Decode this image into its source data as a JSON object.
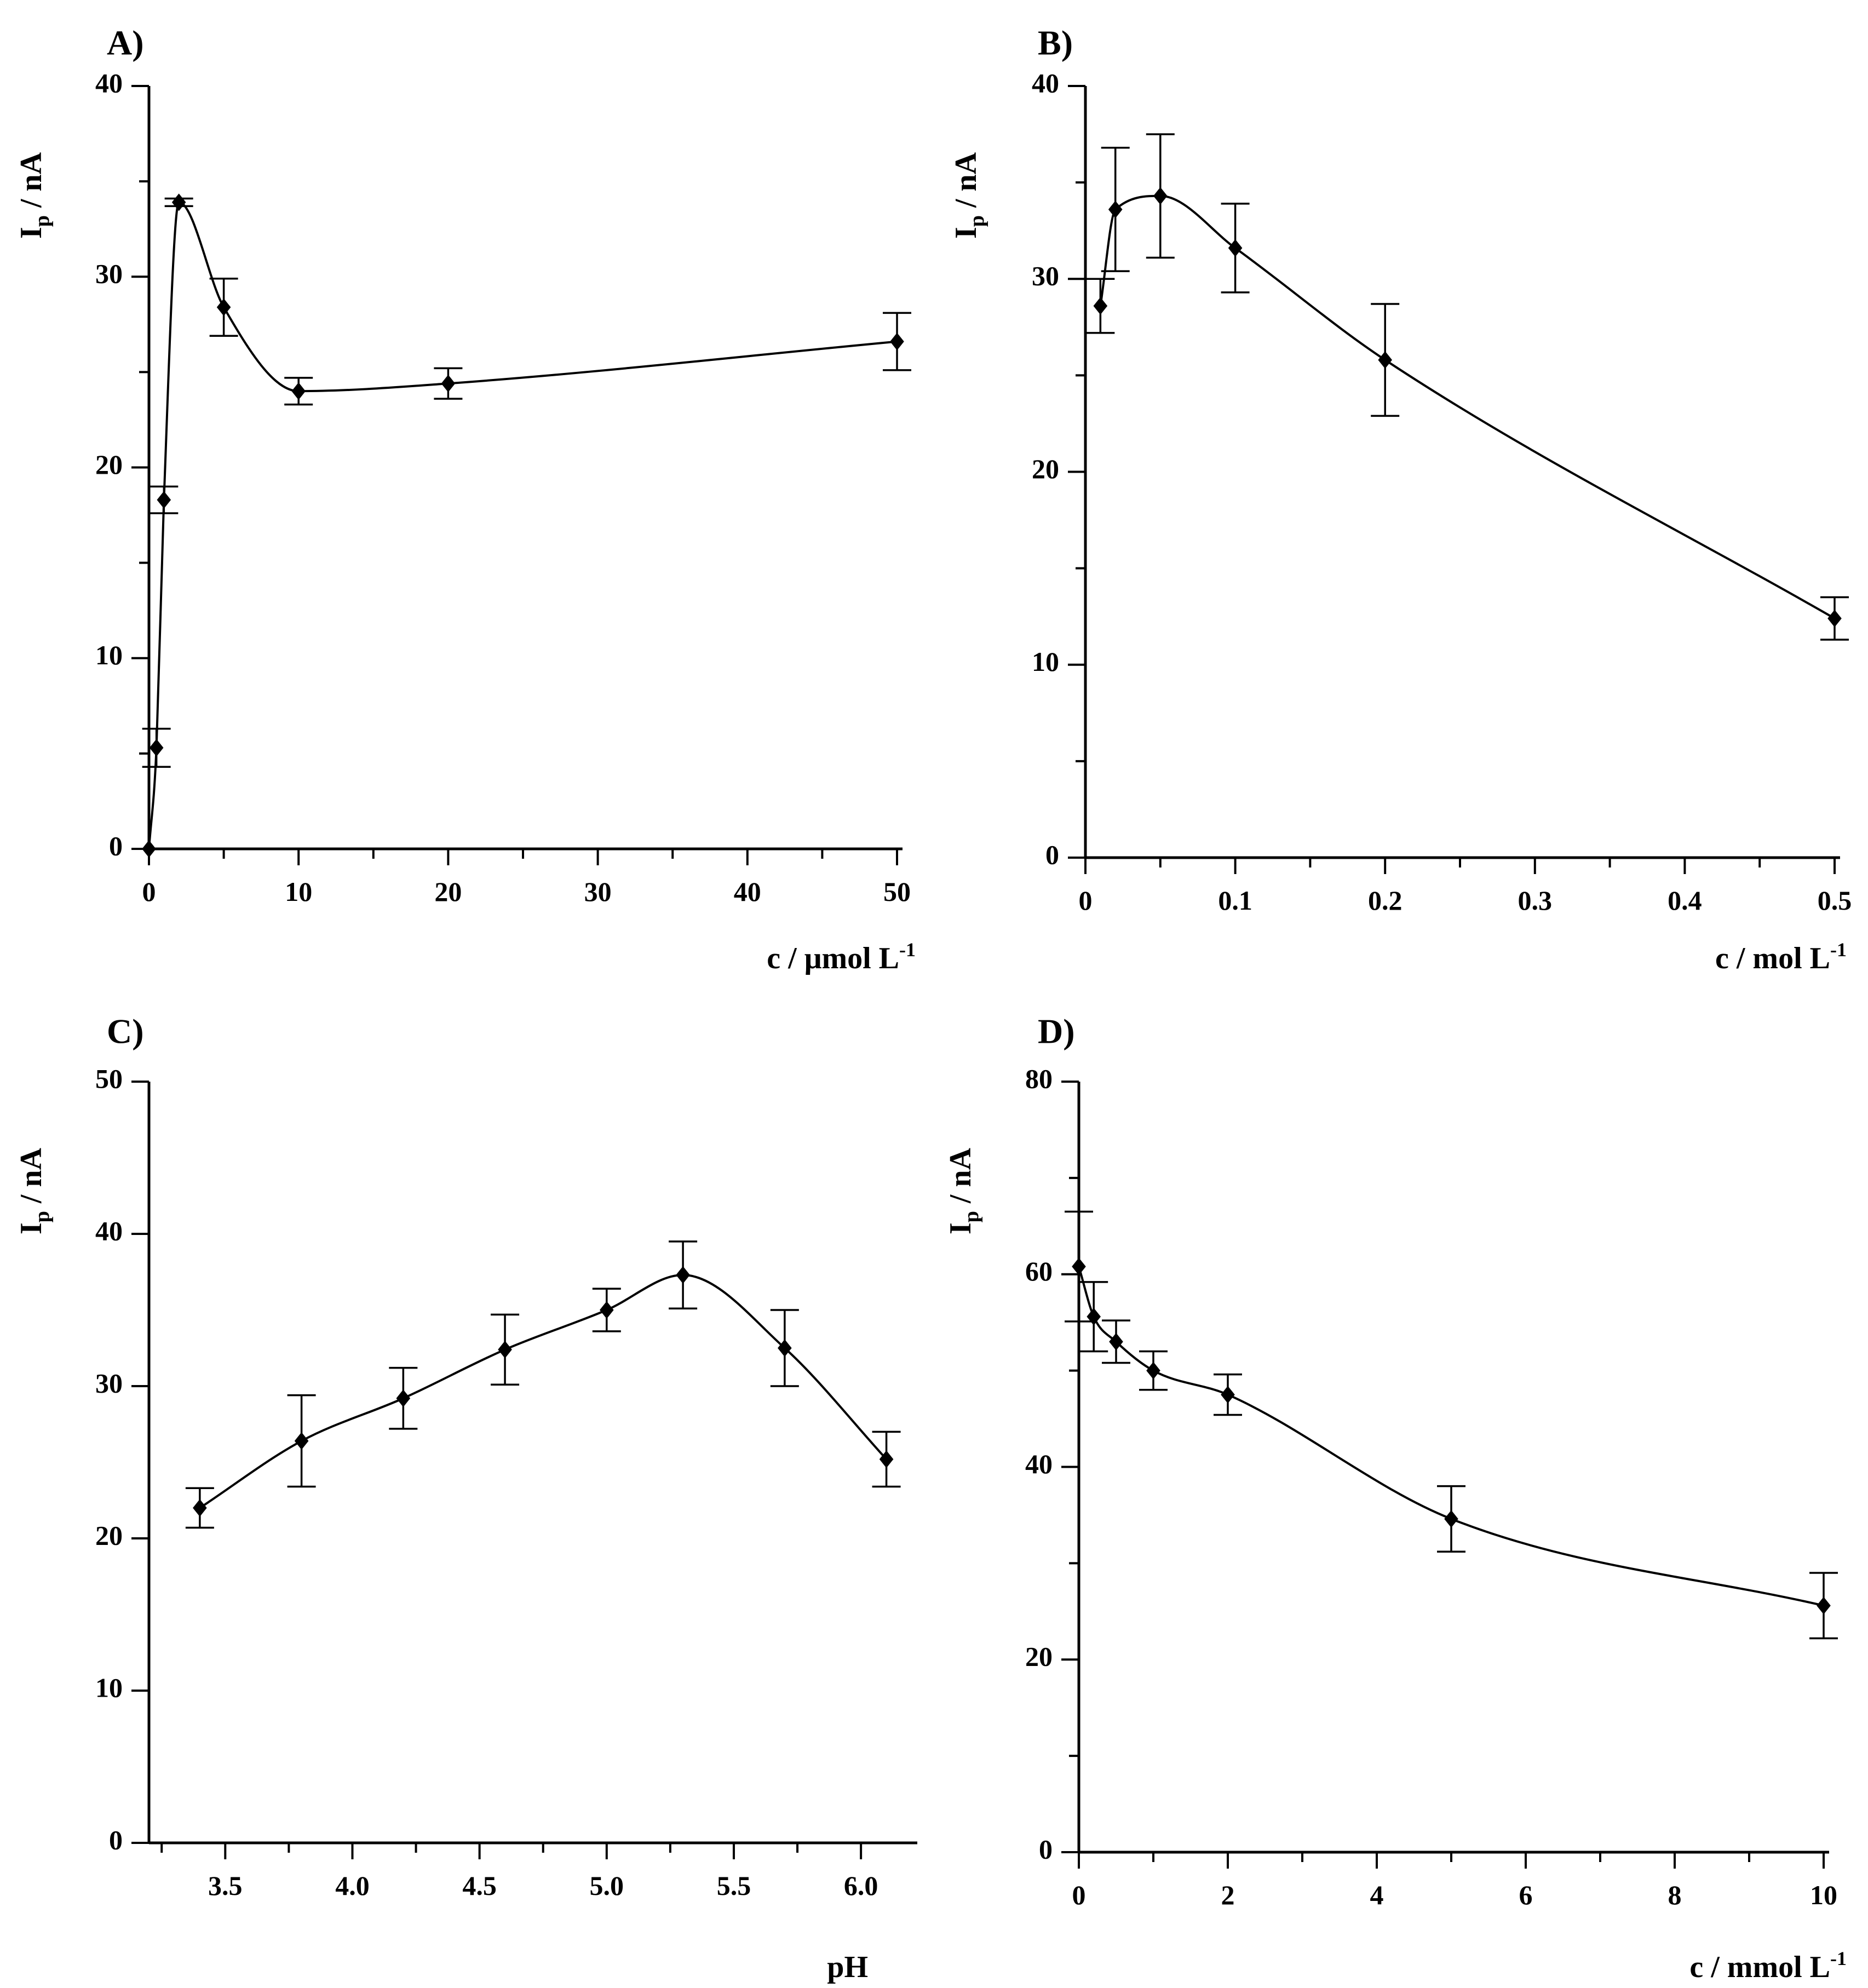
{
  "figure": {
    "panel_count": 4
  },
  "chart_data": [
    {
      "id": "A",
      "panel_label": "A)",
      "type": "line",
      "ylabel": {
        "base": "I",
        "sub": "p",
        "rest": " / nA"
      },
      "xlabel": {
        "base": "c / μmol L",
        "sup": "-1"
      },
      "xlim": [
        0,
        50
      ],
      "ylim": [
        0,
        40
      ],
      "x_ticks": [
        0,
        10,
        20,
        30,
        40,
        50
      ],
      "x_tick_labels": [
        "0",
        "10",
        "20",
        "30",
        "40",
        "50"
      ],
      "x_minor_step": 5,
      "y_ticks": [
        0,
        10,
        20,
        30,
        40
      ],
      "y_tick_labels": [
        "0",
        "10",
        "20",
        "30",
        "40"
      ],
      "y_minor_step": 5,
      "series": [
        {
          "name": "A",
          "x": [
            0,
            0.5,
            1,
            2,
            5,
            10,
            20,
            50
          ],
          "y": [
            0,
            5.3,
            18.3,
            33.9,
            28.4,
            24.0,
            24.4,
            26.6
          ],
          "err": [
            0,
            1.0,
            0.7,
            0.2,
            1.5,
            0.7,
            0.8,
            1.5
          ]
        }
      ]
    },
    {
      "id": "B",
      "panel_label": "B)",
      "type": "line",
      "ylabel": {
        "base": "I",
        "sub": "p",
        "rest": " / nA"
      },
      "xlabel": {
        "base": "c / mol L",
        "sup": "-1"
      },
      "xlim": [
        0,
        0.5
      ],
      "ylim": [
        0,
        40
      ],
      "x_ticks": [
        0,
        0.1,
        0.2,
        0.3,
        0.4,
        0.5
      ],
      "x_tick_labels": [
        "0",
        "0.1",
        "0.2",
        "0.3",
        "0.4",
        "0.5"
      ],
      "x_minor_step": 0.05,
      "y_ticks": [
        0,
        10,
        20,
        30,
        40
      ],
      "y_tick_labels": [
        "0",
        "10",
        "20",
        "30",
        "40"
      ],
      "y_minor_step": 5,
      "series": [
        {
          "name": "B",
          "x": [
            0.01,
            0.02,
            0.05,
            0.1,
            0.2,
            0.5
          ],
          "y": [
            28.6,
            33.6,
            34.3,
            31.6,
            25.8,
            12.4
          ],
          "err": [
            1.4,
            3.2,
            3.2,
            2.3,
            2.9,
            1.1
          ]
        }
      ]
    },
    {
      "id": "C",
      "panel_label": "C)",
      "type": "line",
      "ylabel": {
        "base": "I",
        "sub": "p",
        "rest": " / nA"
      },
      "xlabel": {
        "base": "pH",
        "sup": ""
      },
      "xlim": [
        3.2,
        6.2
      ],
      "ylim": [
        0,
        50
      ],
      "x_ticks": [
        3.5,
        4.0,
        4.5,
        5.0,
        5.5,
        6.0
      ],
      "x_tick_labels": [
        "3.5",
        "4.0",
        "4.5",
        "5.0",
        "5.5",
        "6.0"
      ],
      "x_minor_step": 0.25,
      "y_ticks": [
        0,
        10,
        20,
        30,
        40,
        50
      ],
      "y_tick_labels": [
        "0",
        "10",
        "20",
        "30",
        "40",
        "50"
      ],
      "y_minor_step": 0,
      "series": [
        {
          "name": "C",
          "x": [
            3.4,
            3.8,
            4.2,
            4.6,
            5.0,
            5.3,
            5.7,
            6.1
          ],
          "y": [
            22.0,
            26.4,
            29.2,
            32.4,
            35.0,
            37.3,
            32.5,
            25.2
          ],
          "err": [
            1.3,
            3.0,
            2.0,
            2.3,
            1.4,
            2.2,
            2.5,
            1.8
          ]
        }
      ]
    },
    {
      "id": "D",
      "panel_label": "D)",
      "type": "line",
      "ylabel": {
        "base": "I",
        "sub": "p",
        "rest": " / nA"
      },
      "xlabel": {
        "base": "c / mmol L",
        "sup": "-1"
      },
      "xlim": [
        0,
        10
      ],
      "ylim": [
        0,
        80
      ],
      "x_ticks": [
        0,
        2,
        4,
        6,
        8,
        10
      ],
      "x_tick_labels": [
        "0",
        "2",
        "4",
        "6",
        "8",
        "10"
      ],
      "x_minor_step": 1,
      "y_ticks": [
        0,
        20,
        40,
        60,
        80
      ],
      "y_tick_labels": [
        "0",
        "20",
        "40",
        "60",
        "80"
      ],
      "y_minor_step": 10,
      "series": [
        {
          "name": "D",
          "x": [
            0,
            0.2,
            0.5,
            1,
            2,
            5,
            10
          ],
          "y": [
            60.8,
            55.6,
            53.0,
            50.0,
            47.5,
            34.6,
            25.6
          ],
          "err": [
            5.7,
            3.6,
            2.2,
            2.0,
            2.1,
            3.4,
            3.4
          ]
        }
      ]
    }
  ]
}
